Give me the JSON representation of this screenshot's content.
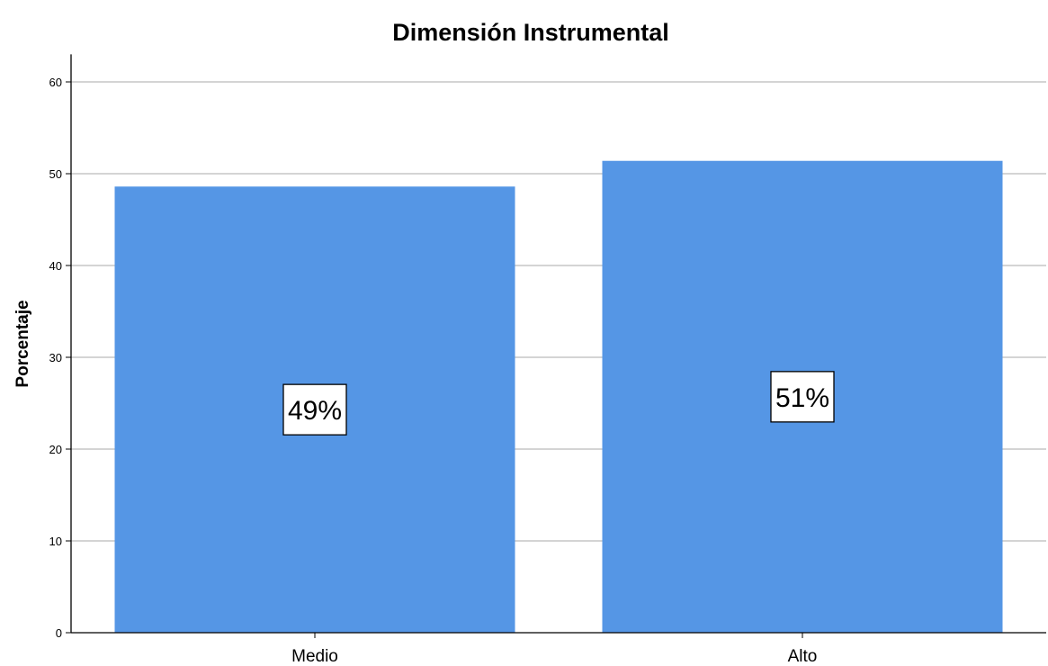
{
  "chart_data": {
    "type": "bar",
    "title": "Dimensión Instrumental",
    "xlabel": "",
    "ylabel": "Porcentaje",
    "categories": [
      "Medio",
      "Alto"
    ],
    "values": [
      48.6,
      51.4
    ],
    "data_labels": [
      "49%",
      "51%"
    ],
    "ylim": [
      0,
      63
    ],
    "yticks": [
      0,
      10,
      20,
      30,
      40,
      50,
      60
    ],
    "grid": "horizontal",
    "legend": "none",
    "colors": {
      "bar": "#5596e5",
      "grid": "#c6c6c6",
      "axis": "#000000",
      "label_box_fill": "#ffffff",
      "label_box_stroke": "#000000"
    }
  }
}
